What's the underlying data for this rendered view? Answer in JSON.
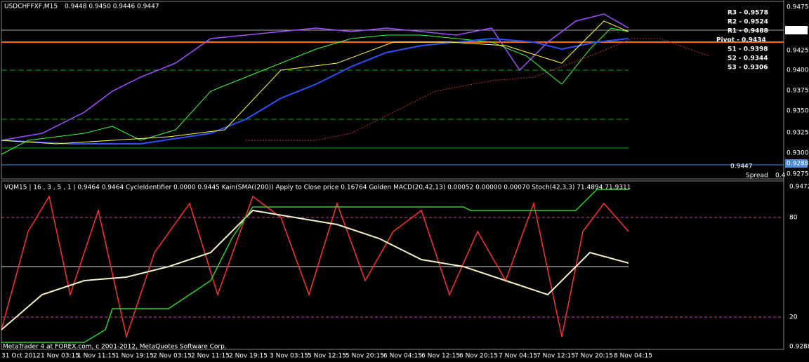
{
  "header": {
    "symbol": "USDCHFFXF,M15",
    "quote": "0.9448 0.9450 0.9446 0.9447"
  },
  "price_axis": [
    "0.9475",
    "0.9447",
    "0.9425",
    "0.9400",
    "0.9375",
    "0.9350",
    "0.9325",
    "0.9300",
    "0.9288",
    "0.9275"
  ],
  "pivots": [
    "R3 - 0.9578",
    "R2 - 0.9524",
    "R1 - 0.9488",
    "Pivot - 0.9434",
    "S1 - 0.9398",
    "S2 - 0.9344",
    "S3 - 0.9306"
  ],
  "info": {
    "price": "0.9447",
    "spread_label": "Spread",
    "spread_value": "0.4"
  },
  "indicator": {
    "header": "VQM15 | 16 , 3 , 5 , 1 | 0.9464 0.9464 CycleIdentifier 0.0000 0.9445 Kain(SMA((200)) Apply to Close price 0.16764 Golden MACD(20,42,13) 0.00052 0.00000 0.00070 Stoch(42,3,3) 71.4894 71.9311",
    "axis": [
      "0.9472",
      "80",
      "20",
      "0.9288"
    ]
  },
  "time_axis": [
    "31 Oct 2012",
    "1 Nov 03:15",
    "1 Nov 11:15",
    "1 Nov 19:15",
    "2 Nov 03:15",
    "2 Nov 11:15",
    "2 Nov 19:15",
    "3 Nov 03:15",
    "5 Nov 12:15",
    "5 Nov 20:15",
    "6 Nov 04:15",
    "6 Nov 12:15",
    "6 Nov 20:15",
    "7 Nov 04:15",
    "7 Nov 12:15",
    "7 Nov 20:15",
    "8 Nov 04:15"
  ],
  "footer": "MetaTrader 4 at FOREX.com, c 2001-2012, MetaQuotes Software Corp."
}
